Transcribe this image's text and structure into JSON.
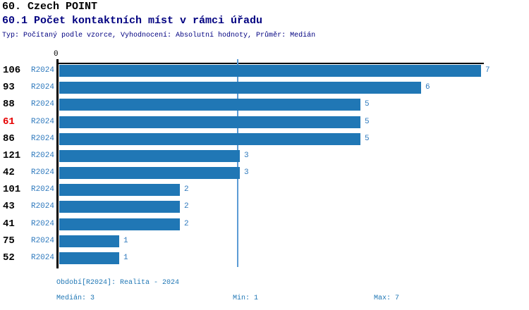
{
  "header": {
    "title": "60. Czech POINT",
    "subtitle": "60.1 Počet kontaktních míst v rámci úřadu",
    "meta": "Typ: Počítaný podle vzorce, Vyhodnocení: Absolutní hodnoty, Průměr: Medián"
  },
  "chart_data": {
    "type": "bar",
    "orientation": "horizontal",
    "title": "60.1 Počet kontaktních míst v rámci úřadu",
    "categories": [
      "106",
      "93",
      "88",
      "61",
      "86",
      "121",
      "42",
      "101",
      "43",
      "41",
      "75",
      "52"
    ],
    "series_label": "R2024",
    "series": [
      {
        "name": "R2024",
        "values": [
          7,
          6,
          5,
          5,
          5,
          3,
          3,
          2,
          2,
          2,
          1,
          1
        ]
      }
    ],
    "values": [
      7,
      6,
      5,
      5,
      5,
      3,
      3,
      2,
      2,
      2,
      1,
      1
    ],
    "highlighted_category": "61",
    "zero_tick_label": "0",
    "xlim": [
      0,
      7
    ],
    "median_gridline_value": 3,
    "grid": "median-line-only",
    "legend_position": "none",
    "colors": {
      "bar": "#2077b5",
      "value_label": "#2e79bd",
      "series_label": "#2e79bd",
      "category_label": "#000000",
      "highlighted_category_label": "#e60000",
      "median_gridline": "#5b9bd5",
      "axis": "#000000",
      "heading_accent": "#000080",
      "footer_text": "#2077b5"
    }
  },
  "footer": {
    "period": "Období[R2024]: Realita - 2024",
    "median": "Medián: 3",
    "min": "Min: 1",
    "max": "Max: 7"
  }
}
